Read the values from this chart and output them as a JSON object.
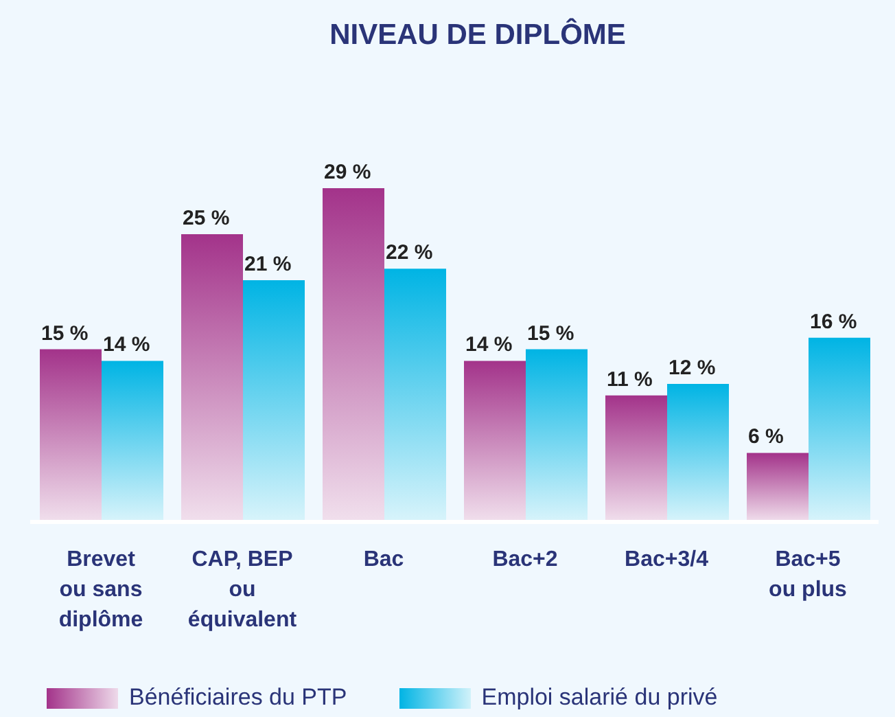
{
  "chart_data": {
    "type": "bar",
    "title": "NIVEAU DE DIPLÔME",
    "categories": [
      "Brevet\nou sans\ndiplôme",
      "CAP, BEP\nou\néquivalent",
      "Bac",
      "Bac+2",
      "Bac+3/4",
      "Bac+5\nou plus"
    ],
    "series": [
      {
        "name": "Bénéficiaires du PTP",
        "color": "#a3338a",
        "values": [
          15,
          25,
          29,
          14,
          11,
          6
        ],
        "value_labels": [
          "15 %",
          "25 %",
          "29 %",
          "14 %",
          "11 %",
          "6 %"
        ]
      },
      {
        "name": "Emploi salarié du privé",
        "color": "#00b4e4",
        "values": [
          14,
          21,
          22,
          15,
          12,
          16
        ],
        "value_labels": [
          "14 %",
          "21 %",
          "22 %",
          "15 %",
          "12 %",
          "16 %"
        ]
      }
    ],
    "legend": "bottom left"
  }
}
